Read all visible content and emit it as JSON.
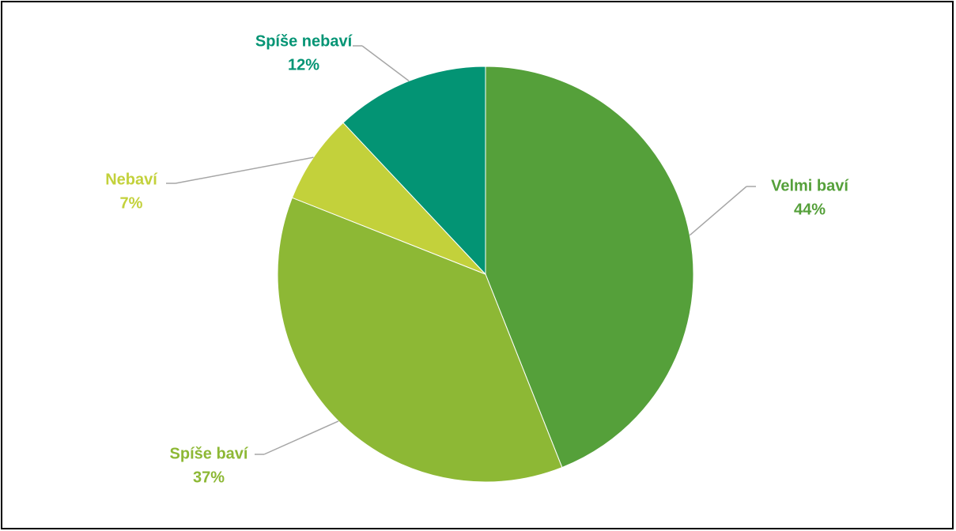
{
  "chart_data": {
    "type": "pie",
    "slices": [
      {
        "label": "Velmi baví",
        "value": 44,
        "display": "44%",
        "color": "#55a03a"
      },
      {
        "label": "Spíše baví",
        "value": 37,
        "display": "37%",
        "color": "#8db835"
      },
      {
        "label": "Nebaví",
        "value": 7,
        "display": "7%",
        "color": "#c3d13b"
      },
      {
        "label": "Spíše nebaví",
        "value": 12,
        "display": "12%",
        "color": "#039474"
      }
    ],
    "start_angle_deg": 0,
    "direction": "clockwise",
    "legend": "none",
    "data_labels": "outside with leader lines"
  }
}
